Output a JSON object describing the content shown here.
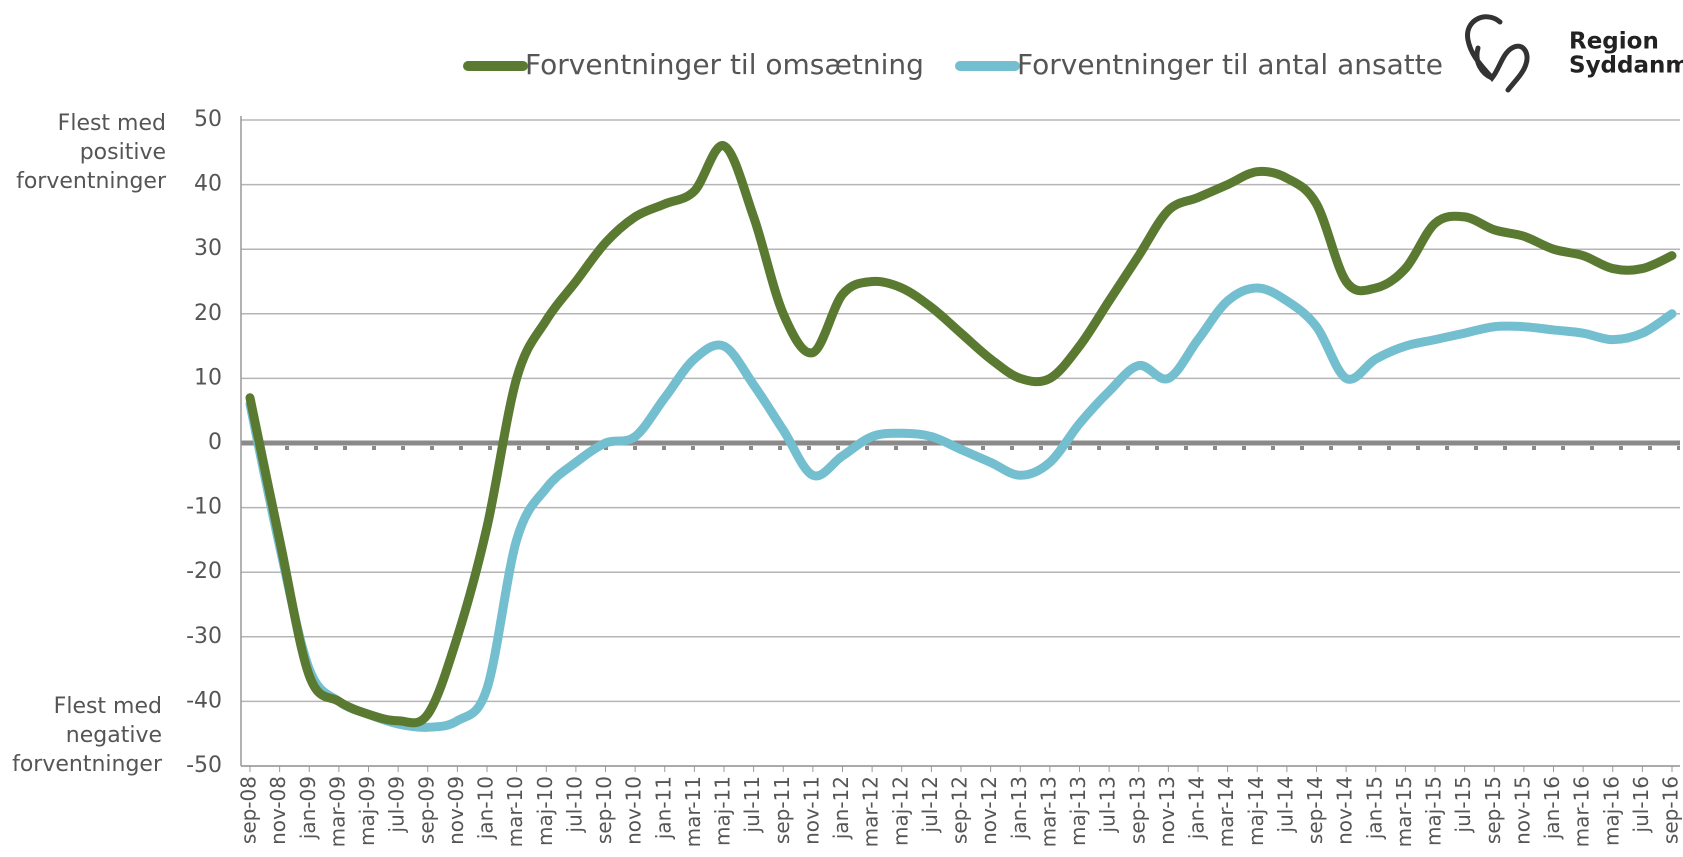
{
  "chart_data": {
    "type": "line",
    "legend": "top",
    "logo": [
      "Region",
      "Syddanmark"
    ],
    "annotation_top": [
      "Flest med",
      "positive",
      "forventninger"
    ],
    "annotation_bottom": [
      "Flest med",
      "negative",
      "forventninger"
    ],
    "categories": [
      "sep-08",
      "nov-08",
      "jan-09",
      "mar-09",
      "maj-09",
      "jul-09",
      "sep-09",
      "nov-09",
      "jan-10",
      "mar-10",
      "maj-10",
      "jul-10",
      "sep-10",
      "nov-10",
      "jan-11",
      "mar-11",
      "maj-11",
      "jul-11",
      "sep-11",
      "nov-11",
      "jan-12",
      "mar-12",
      "maj-12",
      "jul-12",
      "sep-12",
      "nov-12",
      "jan-13",
      "mar-13",
      "maj-13",
      "jul-13",
      "sep-13",
      "nov-13",
      "jan-14",
      "mar-14",
      "maj-14",
      "jul-14",
      "sep-14",
      "nov-14",
      "jan-15",
      "mar-15",
      "maj-15",
      "jul-15",
      "sep-15",
      "nov-15",
      "jan-16",
      "mar-16",
      "maj-16",
      "jul-16",
      "sep-16"
    ],
    "series": [
      {
        "name": "Forventninger til omsætning",
        "color": "#5b7a31",
        "values": [
          7,
          -15,
          -36,
          -40,
          -42,
          -43,
          -42,
          -30,
          -13,
          10,
          19,
          25,
          31,
          35,
          37,
          39,
          46,
          35,
          20,
          14,
          23,
          25,
          24,
          21,
          17,
          13,
          10,
          10,
          15,
          22,
          29,
          36,
          38,
          40,
          42,
          41,
          37,
          25,
          24,
          27,
          34,
          35,
          33,
          32,
          30,
          29,
          27,
          27,
          29
        ]
      },
      {
        "name": "Forventninger til antal ansatte",
        "color": "#74bfcf",
        "values": [
          6,
          -16,
          -35,
          -40,
          -42,
          -43.5,
          -44,
          -43,
          -38,
          -15,
          -7,
          -3,
          0,
          1,
          7,
          13,
          15,
          9,
          2,
          -5,
          -2,
          1,
          1.5,
          1,
          -1,
          -3,
          -5,
          -3,
          3,
          8,
          12,
          10,
          16,
          22,
          24,
          22,
          18,
          10,
          13,
          15,
          16,
          17,
          18,
          18,
          17.5,
          17,
          16,
          17,
          20
        ]
      }
    ],
    "ylim": [
      -50,
      50
    ],
    "yticks": [
      -50,
      -40,
      -30,
      -20,
      -10,
      0,
      10,
      20,
      30,
      40,
      50
    ],
    "grid": true,
    "zero_line": true
  }
}
